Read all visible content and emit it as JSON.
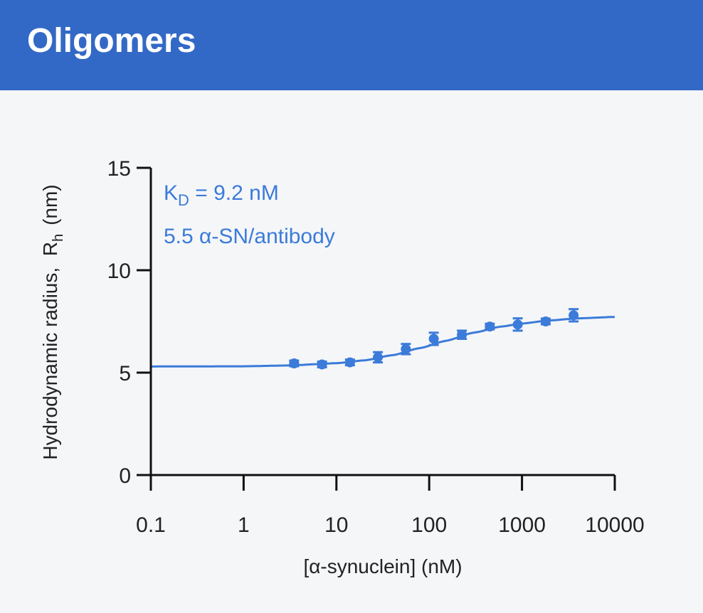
{
  "header": {
    "title": "Oligomers"
  },
  "colors": {
    "header_bg": "#3369c6",
    "series": "#3b7bd9",
    "axis": "#111111",
    "panel_bg": "#f5f6f8"
  },
  "chart_data": {
    "type": "scatter",
    "xscale": "log",
    "xlim": [
      0.1,
      10000
    ],
    "ylim": [
      0,
      15
    ],
    "xticks": [
      0.1,
      1,
      10,
      100,
      1000,
      10000
    ],
    "xtick_labels": [
      "0.1",
      "1",
      "10",
      "100",
      "1000",
      "10000"
    ],
    "yticks": [
      0,
      5,
      10,
      15
    ],
    "ytick_labels": [
      "0",
      "5",
      "10",
      "15"
    ],
    "xlabel": "[α-synuclein] (nM)",
    "ylabel_main": "Hydrodynamic radius,",
    "ylabel_symbol": "R",
    "ylabel_subscript": "h",
    "ylabel_unit": "(nm)",
    "annotations": {
      "kd_symbol": "K",
      "kd_subscript": "D",
      "kd_value": " = 9.2 nM",
      "stoichiometry": "5.5 α-SN/antibody"
    },
    "grid": false,
    "points": [
      {
        "x": 3.5,
        "y": 5.45,
        "err": 0.12
      },
      {
        "x": 7,
        "y": 5.4,
        "err": 0.12
      },
      {
        "x": 14,
        "y": 5.5,
        "err": 0.12
      },
      {
        "x": 28,
        "y": 5.75,
        "err": 0.25
      },
      {
        "x": 56,
        "y": 6.15,
        "err": 0.25
      },
      {
        "x": 112,
        "y": 6.65,
        "err": 0.3
      },
      {
        "x": 225,
        "y": 6.85,
        "err": 0.2
      },
      {
        "x": 450,
        "y": 7.25,
        "err": 0.12
      },
      {
        "x": 900,
        "y": 7.35,
        "err": 0.3
      },
      {
        "x": 1800,
        "y": 7.5,
        "err": 0.12
      },
      {
        "x": 3600,
        "y": 7.8,
        "err": 0.3
      }
    ],
    "fit": {
      "name": "binding fit",
      "baseline": 5.3,
      "plateau": 7.75,
      "x": [
        0.1,
        1,
        3,
        10,
        20,
        40,
        80,
        150,
        300,
        600,
        1000,
        2000,
        4000,
        10000
      ],
      "y": [
        5.3,
        5.31,
        5.35,
        5.46,
        5.6,
        5.85,
        6.2,
        6.55,
        6.95,
        7.25,
        7.4,
        7.55,
        7.65,
        7.72
      ]
    }
  }
}
